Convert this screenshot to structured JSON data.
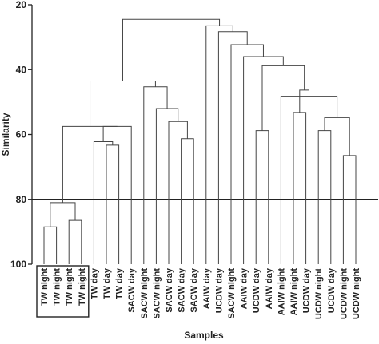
{
  "chart_data": {
    "type": "dendrogram",
    "xlabel": "Samples",
    "ylabel": "Similarity",
    "ylim": [
      20,
      100
    ],
    "y_ticks": [
      20,
      40,
      60,
      80,
      100
    ],
    "cut_line": 80,
    "boxed_leaves": [
      0,
      1,
      2,
      3
    ],
    "leaves": [
      "TW night",
      "TW night",
      "TW night",
      "TW night",
      "TW day",
      "TW day",
      "TW day",
      "SACW day",
      "SACW night",
      "SACW night",
      "SACW day",
      "SACW day",
      "SACW day",
      "AAIW day",
      "UCDW day",
      "SACW night",
      "AAIW day",
      "UCDW day",
      "AAIW day",
      "AAIW night",
      "AAIW night",
      "UCDW day",
      "UCDW night",
      "UCDW day",
      "UCDW night",
      "UCDW night"
    ],
    "merges": [
      {
        "a": 0,
        "b": 1,
        "similarity": 88.5
      },
      {
        "a": 2,
        "b": 3,
        "similarity": 86.5
      },
      {
        "a": 5,
        "b": 6,
        "similarity": 63.3
      },
      {
        "a": 4,
        "b": "m2",
        "similarity": 62.2
      },
      {
        "a": "m0",
        "b": "m1",
        "similarity": 81.0
      },
      {
        "a": 7,
        "b": "m3",
        "similarity": 57.5
      },
      {
        "a": "m4",
        "b": "m5",
        "similarity": 57.5
      },
      {
        "a": 11,
        "b": 12,
        "similarity": 61.3
      },
      {
        "a": 10,
        "b": "m7",
        "similarity": 56.0
      },
      {
        "a": 9,
        "b": "m8",
        "similarity": 52.0
      },
      {
        "a": 8,
        "b": "m9",
        "similarity": 45.3
      },
      {
        "a": "m6",
        "b": "m10",
        "similarity": 43.5
      },
      {
        "a": 13,
        "b": 14,
        "similarity": 59.8
      },
      {
        "a": 15,
        "b": 16,
        "similarity": 42.8
      },
      {
        "a": 17,
        "b": 18,
        "similarity": 58.8
      },
      {
        "a": 20,
        "b": 21,
        "similarity": 53.2
      },
      {
        "a": 22,
        "b": 23,
        "similarity": 58.8
      },
      {
        "a": 24,
        "b": 25,
        "similarity": 66.5
      },
      {
        "a": "m16",
        "b": "m17",
        "similarity": 54.8
      },
      {
        "a": "m18",
        "b": 19,
        "similarity": 48.2
      },
      {
        "a": "m15",
        "b": "m19",
        "similarity": 46.3
      },
      {
        "a": "m14",
        "b": "m20",
        "similarity": 40.0
      },
      {
        "a": "m21",
        "b": 12.5,
        "similarity": 38.8
      },
      {
        "a": "m13",
        "b": "m22",
        "similarity": 36.0
      },
      {
        "a": "m23",
        "b": "m12",
        "similarity": 32.3
      },
      {
        "a": "m24",
        "b": "m12b",
        "similarity": 28.3
      },
      {
        "a": "m11",
        "b": "m25",
        "similarity": 26.5
      },
      {
        "a": "m26",
        "b": "m0b",
        "similarity": 24.5
      }
    ]
  }
}
